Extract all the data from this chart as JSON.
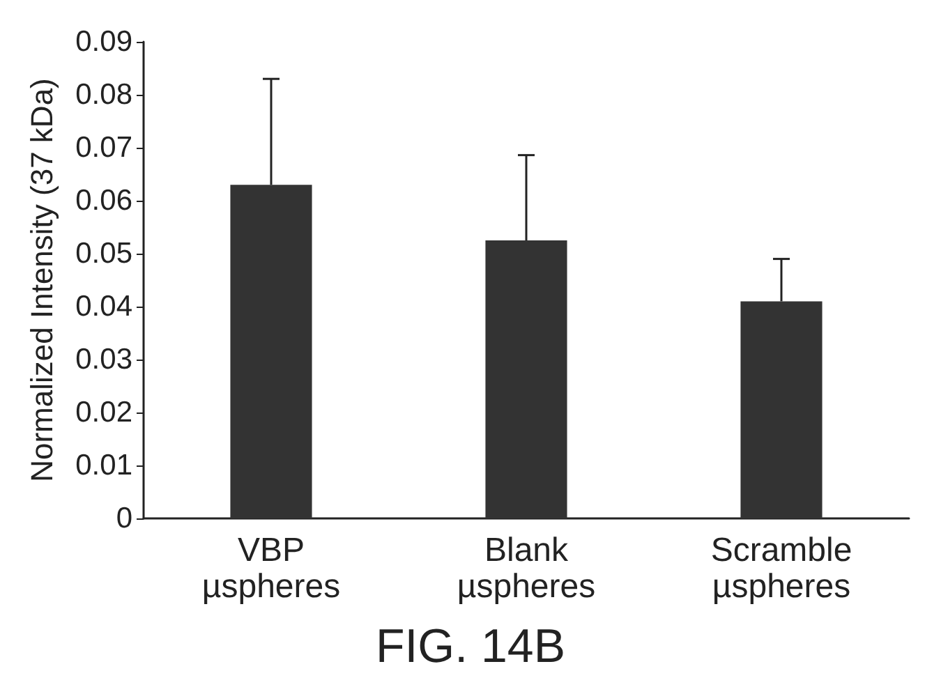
{
  "chart_data": {
    "type": "bar",
    "title": "FIG. 14B",
    "ylabel": "Normalized Intensity (37 kDa)",
    "categories": [
      "VBP\nµspheres",
      "Blank\nµspheres",
      "Scramble\nµspheres"
    ],
    "values": [
      0.063,
      0.0525,
      0.041
    ],
    "color": "#333333",
    "errors": [
      [
        0.063,
        0.083
      ],
      [
        0.0525,
        0.0686
      ],
      [
        0.041,
        0.049
      ]
    ],
    "ylim": [
      0,
      0.09
    ],
    "yticks": [
      0,
      0.01,
      0.02,
      0.03,
      0.04,
      0.05,
      0.06,
      0.07,
      0.08,
      0.09
    ],
    "grid": false
  }
}
